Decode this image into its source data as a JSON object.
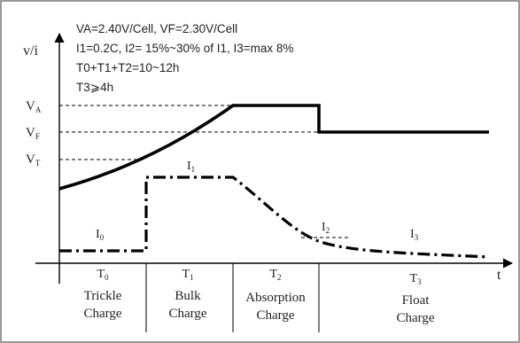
{
  "params": {
    "line1": "VA=2.40V/Cell, VF=2.30V/Cell",
    "line2": "I1=0.2C, I2= 15%~30% of I1, I3=max 8%",
    "line3": "T0+T1+T2=10~12h",
    "line4": "T3⩾4h"
  },
  "axes": {
    "y_label": "v/i",
    "x_label": "t"
  },
  "voltage_levels": {
    "va": "V",
    "va_sub": "A",
    "vf": "V",
    "vf_sub": "F",
    "vt": "V",
    "vt_sub": "T"
  },
  "current_labels": {
    "i0": "I",
    "i0_sub": "0",
    "i1": "I",
    "i1_sub": "1",
    "i2": "I",
    "i2_sub": "2",
    "i3": "I",
    "i3_sub": "3"
  },
  "stages": [
    {
      "time": "T",
      "time_sub": "0",
      "name_line1": "Trickle",
      "name_line2": "Charge"
    },
    {
      "time": "T",
      "time_sub": "1",
      "name_line1": "Bulk",
      "name_line2": "Charge"
    },
    {
      "time": "T",
      "time_sub": "2",
      "name_line1": "Absorption",
      "name_line2": "Charge"
    },
    {
      "time": "T",
      "time_sub": "3",
      "name_line1": "Float",
      "name_line2": "Charge"
    }
  ],
  "colors": {
    "line": "#000000",
    "text": "#222222",
    "border": "#555555",
    "background": "#ffffff"
  }
}
